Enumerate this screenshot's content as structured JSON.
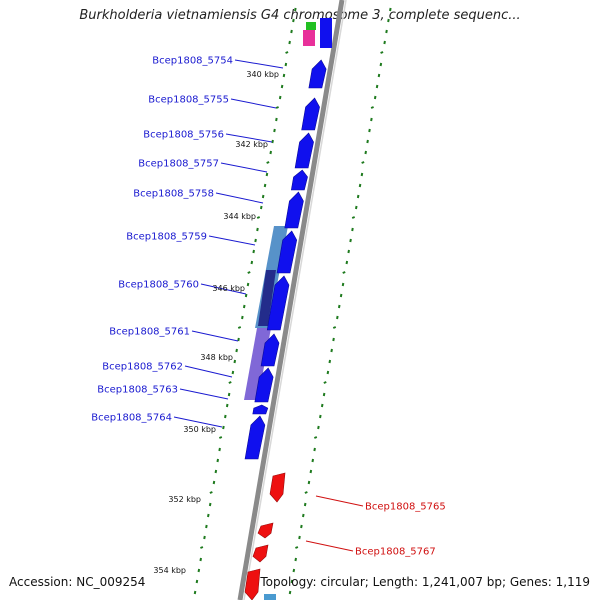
{
  "title": "Burkholderia vietnamiensis G4 chromosome 3, complete sequenc...",
  "footer": {
    "accession": "Accession: NC_009254",
    "summary": "Topology: circular; Length: 1,241,007 bp; Genes: 1,119"
  },
  "colors": {
    "forward_gene": "#1010ee",
    "reverse_gene": "#ee1010",
    "forward_label": "#1a1ad0",
    "reverse_label": "#d01010",
    "tick": "#1e7a1e",
    "backbone": "#8a8a8a",
    "operon_light": "#3a7fc0",
    "operon_purple": "#6a4ed0",
    "operon_dark": "#1a1a80"
  },
  "kbp_ticks": [
    "340 kbp",
    "342 kbp",
    "344 kbp",
    "346 kbp",
    "348 kbp",
    "350 kbp",
    "352 kbp",
    "354 kbp"
  ],
  "forward_genes": [
    "Bcep1808_5754",
    "Bcep1808_5755",
    "Bcep1808_5756",
    "Bcep1808_5757",
    "Bcep1808_5758",
    "Bcep1808_5759",
    "Bcep1808_5760",
    "Bcep1808_5761",
    "Bcep1808_5762",
    "Bcep1808_5763",
    "Bcep1808_5764"
  ],
  "reverse_genes": [
    "Bcep1808_5765",
    "Bcep1808_5767"
  ]
}
